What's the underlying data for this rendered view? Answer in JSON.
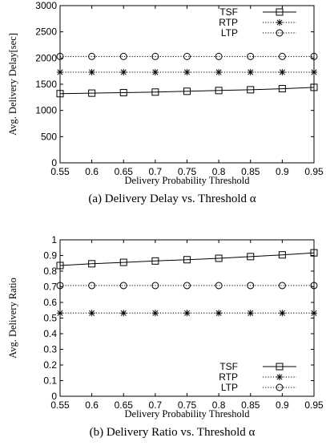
{
  "chart_data": [
    {
      "type": "line",
      "caption": "(a) Delivery Delay vs. Threshold α",
      "xlabel": "Delivery Probability Threshold",
      "ylabel": "Avg. Delivery Delay[sec]",
      "xlim": [
        0.55,
        0.95
      ],
      "ylim": [
        0,
        3000
      ],
      "xticks": [
        "0.55",
        "0.6",
        "0.65",
        "0.7",
        "0.75",
        "0.8",
        "0.85",
        "0.9",
        "0.95"
      ],
      "yticks": [
        "0",
        "500",
        "1000",
        "1500",
        "2000",
        "2500",
        "3000"
      ],
      "legend_position": "top-right",
      "x": [
        0.55,
        0.6,
        0.65,
        0.7,
        0.75,
        0.8,
        0.85,
        0.9,
        0.95
      ],
      "series": [
        {
          "name": "TSF",
          "marker": "square",
          "line": "solid",
          "values": [
            1320,
            1330,
            1340,
            1350,
            1365,
            1380,
            1395,
            1415,
            1440
          ]
        },
        {
          "name": "RTP",
          "marker": "star",
          "line": "dotted",
          "values": [
            1730,
            1730,
            1730,
            1730,
            1730,
            1730,
            1730,
            1730,
            1730
          ]
        },
        {
          "name": "LTP",
          "marker": "circle",
          "line": "dotted",
          "values": [
            2030,
            2030,
            2030,
            2030,
            2030,
            2030,
            2030,
            2030,
            2030
          ]
        }
      ]
    },
    {
      "type": "line",
      "caption": "(b) Delivery Ratio vs. Threshold α",
      "xlabel": "Delivery Probability Threshold",
      "ylabel": "Avg. Delivery Ratio",
      "xlim": [
        0.55,
        0.95
      ],
      "ylim": [
        0,
        1
      ],
      "xticks": [
        "0.55",
        "0.6",
        "0.65",
        "0.7",
        "0.75",
        "0.8",
        "0.85",
        "0.9",
        "0.95"
      ],
      "yticks": [
        "0",
        "0.1",
        "0.2",
        "0.3",
        "0.4",
        "0.5",
        "0.6",
        "0.7",
        "0.8",
        "0.9",
        "1"
      ],
      "legend_position": "bottom-right",
      "x": [
        0.55,
        0.6,
        0.65,
        0.7,
        0.75,
        0.8,
        0.85,
        0.9,
        0.95
      ],
      "series": [
        {
          "name": "TSF",
          "marker": "square",
          "line": "solid",
          "values": [
            0.836,
            0.847,
            0.856,
            0.865,
            0.873,
            0.882,
            0.893,
            0.904,
            0.917
          ]
        },
        {
          "name": "RTP",
          "marker": "star",
          "line": "dotted",
          "values": [
            0.532,
            0.532,
            0.532,
            0.532,
            0.532,
            0.532,
            0.532,
            0.532,
            0.532
          ]
        },
        {
          "name": "LTP",
          "marker": "circle",
          "line": "dotted",
          "values": [
            0.708,
            0.708,
            0.708,
            0.708,
            0.708,
            0.708,
            0.708,
            0.708,
            0.708
          ]
        }
      ]
    }
  ]
}
